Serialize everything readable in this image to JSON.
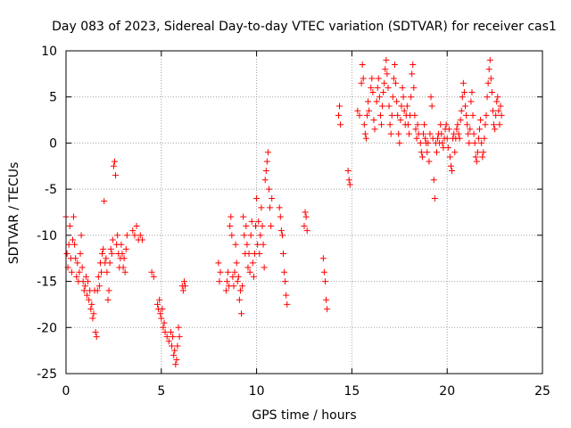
{
  "chart_data": {
    "type": "scatter",
    "title": "Day 083 of 2023, Sidereal Day-to-day VTEC variation (SDTVAR) for receiver cas1",
    "xlabel": "GPS time / hours",
    "ylabel": "SDTVAR / TECUs",
    "xlim": [
      0,
      25
    ],
    "ylim": [
      -25,
      10
    ],
    "xticks": [
      "0",
      "5",
      "10",
      "15",
      "20",
      "25"
    ],
    "yticks": [
      "-25",
      "-20",
      "-15",
      "-10",
      "-5",
      "0",
      "5",
      "10"
    ],
    "grid": true,
    "marker": "+",
    "marker_color": "#ff0000",
    "series": [
      {
        "name": "SDTVAR cas1",
        "points": [
          [
            0.0,
            -8.0
          ],
          [
            0.05,
            -12.0
          ],
          [
            0.1,
            -13.5
          ],
          [
            0.15,
            -11.0
          ],
          [
            0.2,
            -9.0
          ],
          [
            0.25,
            -12.5
          ],
          [
            0.3,
            -14.0
          ],
          [
            0.35,
            -10.5
          ],
          [
            0.4,
            -8.0
          ],
          [
            0.45,
            -11.0
          ],
          [
            0.5,
            -12.5
          ],
          [
            0.55,
            -14.5
          ],
          [
            0.6,
            -13.0
          ],
          [
            0.65,
            -15.0
          ],
          [
            0.7,
            -14.0
          ],
          [
            0.75,
            -12.0
          ],
          [
            0.8,
            -10.0
          ],
          [
            0.85,
            -13.5
          ],
          [
            0.9,
            -15.0
          ],
          [
            0.95,
            -16.0
          ],
          [
            1.0,
            -15.5
          ],
          [
            1.05,
            -14.5
          ],
          [
            1.1,
            -16.5
          ],
          [
            1.15,
            -15.0
          ],
          [
            1.2,
            -17.0
          ],
          [
            1.25,
            -16.0
          ],
          [
            1.3,
            -18.0
          ],
          [
            1.35,
            -17.5
          ],
          [
            1.4,
            -19.0
          ],
          [
            1.45,
            -18.5
          ],
          [
            1.5,
            -16.0
          ],
          [
            1.55,
            -20.5
          ],
          [
            1.6,
            -21.0
          ],
          [
            1.65,
            -16.0
          ],
          [
            1.7,
            -14.5
          ],
          [
            1.75,
            -15.5
          ],
          [
            1.8,
            -13.0
          ],
          [
            1.85,
            -14.0
          ],
          [
            1.9,
            -12.0
          ],
          [
            1.95,
            -11.5
          ],
          [
            2.0,
            -6.3
          ],
          [
            2.05,
            -13.0
          ],
          [
            2.1,
            -12.5
          ],
          [
            2.15,
            -14.0
          ],
          [
            2.2,
            -17.0
          ],
          [
            2.25,
            -16.0
          ],
          [
            2.3,
            -13.0
          ],
          [
            2.35,
            -11.5
          ],
          [
            2.4,
            -12.0
          ],
          [
            2.45,
            -10.5
          ],
          [
            2.5,
            -2.5
          ],
          [
            2.55,
            -2.0
          ],
          [
            2.6,
            -3.5
          ],
          [
            2.65,
            -11.0
          ],
          [
            2.7,
            -10.0
          ],
          [
            2.75,
            -12.0
          ],
          [
            2.8,
            -13.5
          ],
          [
            2.85,
            -12.5
          ],
          [
            2.9,
            -11.0
          ],
          [
            2.95,
            -12.0
          ],
          [
            3.0,
            -13.5
          ],
          [
            3.05,
            -12.5
          ],
          [
            3.1,
            -14.0
          ],
          [
            3.15,
            -11.5
          ],
          [
            3.2,
            -10.0
          ],
          [
            3.5,
            -9.5
          ],
          [
            3.6,
            -10.0
          ],
          [
            3.7,
            -9.0
          ],
          [
            3.8,
            -10.5
          ],
          [
            3.9,
            -10.0
          ],
          [
            4.0,
            -10.5
          ],
          [
            4.5,
            -14.0
          ],
          [
            4.6,
            -14.5
          ],
          [
            4.8,
            -17.5
          ],
          [
            4.85,
            -18.0
          ],
          [
            4.9,
            -17.0
          ],
          [
            4.95,
            -18.5
          ],
          [
            5.0,
            -19.0
          ],
          [
            5.05,
            -18.0
          ],
          [
            5.1,
            -20.0
          ],
          [
            5.15,
            -19.5
          ],
          [
            5.2,
            -20.5
          ],
          [
            5.3,
            -21.0
          ],
          [
            5.4,
            -21.5
          ],
          [
            5.5,
            -20.5
          ],
          [
            5.55,
            -22.0
          ],
          [
            5.6,
            -21.0
          ],
          [
            5.65,
            -23.0
          ],
          [
            5.7,
            -22.5
          ],
          [
            5.75,
            -24.0
          ],
          [
            5.8,
            -23.5
          ],
          [
            5.85,
            -22.0
          ],
          [
            5.9,
            -20.0
          ],
          [
            5.95,
            -21.0
          ],
          [
            6.1,
            -15.5
          ],
          [
            6.15,
            -16.0
          ],
          [
            6.2,
            -15.0
          ],
          [
            6.25,
            -15.5
          ],
          [
            8.0,
            -13.0
          ],
          [
            8.05,
            -15.0
          ],
          [
            8.1,
            -14.0
          ],
          [
            8.4,
            -16.0
          ],
          [
            8.45,
            -15.0
          ],
          [
            8.5,
            -14.0
          ],
          [
            8.55,
            -15.5
          ],
          [
            8.6,
            -9.0
          ],
          [
            8.65,
            -8.0
          ],
          [
            8.7,
            -10.0
          ],
          [
            8.75,
            -14.5
          ],
          [
            8.8,
            -15.5
          ],
          [
            8.85,
            -14.0
          ],
          [
            8.9,
            -11.0
          ],
          [
            8.95,
            -13.0
          ],
          [
            9.0,
            -15.0
          ],
          [
            9.05,
            -14.5
          ],
          [
            9.1,
            -17.0
          ],
          [
            9.15,
            -16.0
          ],
          [
            9.2,
            -18.5
          ],
          [
            9.25,
            -15.5
          ],
          [
            9.3,
            -8.0
          ],
          [
            9.35,
            -10.0
          ],
          [
            9.4,
            -12.0
          ],
          [
            9.45,
            -9.0
          ],
          [
            9.5,
            -11.0
          ],
          [
            9.55,
            -13.5
          ],
          [
            9.6,
            -12.0
          ],
          [
            9.65,
            -14.0
          ],
          [
            9.7,
            -10.0
          ],
          [
            9.75,
            -8.5
          ],
          [
            9.8,
            -13.0
          ],
          [
            9.85,
            -14.5
          ],
          [
            9.9,
            -12.0
          ],
          [
            9.95,
            -9.0
          ],
          [
            10.0,
            -6.0
          ],
          [
            10.05,
            -11.0
          ],
          [
            10.1,
            -8.5
          ],
          [
            10.15,
            -12.0
          ],
          [
            10.2,
            -10.0
          ],
          [
            10.25,
            -7.0
          ],
          [
            10.3,
            -9.0
          ],
          [
            10.35,
            -11.0
          ],
          [
            10.4,
            -13.5
          ],
          [
            10.45,
            -4.0
          ],
          [
            10.5,
            -3.0
          ],
          [
            10.55,
            -2.0
          ],
          [
            10.6,
            -1.0
          ],
          [
            10.65,
            -5.0
          ],
          [
            10.7,
            -7.0
          ],
          [
            10.75,
            -9.0
          ],
          [
            10.8,
            -6.0
          ],
          [
            11.2,
            -7.0
          ],
          [
            11.25,
            -8.0
          ],
          [
            11.3,
            -9.5
          ],
          [
            11.35,
            -10.0
          ],
          [
            11.4,
            -12.0
          ],
          [
            11.45,
            -14.0
          ],
          [
            11.5,
            -15.0
          ],
          [
            11.55,
            -16.5
          ],
          [
            11.6,
            -17.5
          ],
          [
            12.5,
            -9.0
          ],
          [
            12.55,
            -7.5
          ],
          [
            12.6,
            -8.0
          ],
          [
            12.65,
            -9.5
          ],
          [
            13.5,
            -12.5
          ],
          [
            13.55,
            -14.0
          ],
          [
            13.6,
            -15.0
          ],
          [
            13.65,
            -17.0
          ],
          [
            13.7,
            -18.0
          ],
          [
            14.3,
            3.0
          ],
          [
            14.35,
            4.0
          ],
          [
            14.4,
            2.0
          ],
          [
            14.8,
            -3.0
          ],
          [
            14.85,
            -4.0
          ],
          [
            14.9,
            -4.5
          ],
          [
            15.3,
            3.5
          ],
          [
            15.4,
            3.0
          ],
          [
            15.5,
            6.5
          ],
          [
            15.55,
            8.5
          ],
          [
            15.6,
            7.0
          ],
          [
            15.65,
            2.0
          ],
          [
            15.7,
            1.0
          ],
          [
            15.75,
            0.5
          ],
          [
            15.8,
            3.0
          ],
          [
            15.85,
            4.5
          ],
          [
            15.9,
            3.5
          ],
          [
            16.0,
            6.0
          ],
          [
            16.05,
            7.0
          ],
          [
            16.1,
            5.5
          ],
          [
            16.15,
            2.5
          ],
          [
            16.2,
            1.5
          ],
          [
            16.3,
            4.5
          ],
          [
            16.35,
            6.0
          ],
          [
            16.4,
            7.0
          ],
          [
            16.45,
            5.0
          ],
          [
            16.5,
            3.0
          ],
          [
            16.55,
            2.0
          ],
          [
            16.6,
            4.0
          ],
          [
            16.65,
            5.5
          ],
          [
            16.7,
            6.5
          ],
          [
            16.75,
            8.0
          ],
          [
            16.8,
            9.0
          ],
          [
            16.85,
            7.5
          ],
          [
            16.9,
            6.0
          ],
          [
            16.95,
            4.0
          ],
          [
            17.0,
            2.0
          ],
          [
            17.05,
            1.0
          ],
          [
            17.1,
            3.0
          ],
          [
            17.15,
            5.0
          ],
          [
            17.2,
            7.0
          ],
          [
            17.25,
            8.5
          ],
          [
            17.3,
            6.5
          ],
          [
            17.35,
            4.5
          ],
          [
            17.4,
            3.0
          ],
          [
            17.45,
            1.0
          ],
          [
            17.5,
            0.0
          ],
          [
            17.55,
            2.5
          ],
          [
            17.6,
            4.0
          ],
          [
            17.65,
            6.0
          ],
          [
            17.7,
            5.0
          ],
          [
            17.75,
            3.5
          ],
          [
            17.8,
            2.0
          ],
          [
            17.85,
            3.0
          ],
          [
            17.9,
            4.0
          ],
          [
            17.95,
            2.0
          ],
          [
            18.0,
            1.0
          ],
          [
            18.05,
            3.0
          ],
          [
            18.1,
            5.0
          ],
          [
            18.15,
            7.5
          ],
          [
            18.2,
            8.5
          ],
          [
            18.25,
            6.0
          ],
          [
            18.3,
            3.0
          ],
          [
            18.35,
            1.5
          ],
          [
            18.4,
            0.5
          ],
          [
            18.45,
            2.0
          ],
          [
            18.5,
            1.0
          ],
          [
            18.6,
            0.0
          ],
          [
            18.65,
            -1.0
          ],
          [
            18.7,
            -1.5
          ],
          [
            18.75,
            1.0
          ],
          [
            18.8,
            2.0
          ],
          [
            18.85,
            0.5
          ],
          [
            18.9,
            0.0
          ],
          [
            18.95,
            -1.0
          ],
          [
            19.0,
            0.0
          ],
          [
            19.05,
            -2.0
          ],
          [
            19.1,
            1.0
          ],
          [
            19.15,
            5.0
          ],
          [
            19.2,
            4.0
          ],
          [
            19.25,
            0.5
          ],
          [
            19.3,
            -4.0
          ],
          [
            19.35,
            -6.0
          ],
          [
            19.4,
            0.0
          ],
          [
            19.45,
            -1.0
          ],
          [
            19.5,
            0.5
          ],
          [
            19.55,
            1.0
          ],
          [
            19.6,
            0.0
          ],
          [
            19.65,
            2.0
          ],
          [
            19.7,
            1.0
          ],
          [
            19.75,
            0.0
          ],
          [
            19.8,
            -0.5
          ],
          [
            19.85,
            0.5
          ],
          [
            19.9,
            1.5
          ],
          [
            19.95,
            2.0
          ],
          [
            20.0,
            0.5
          ],
          [
            20.05,
            -0.5
          ],
          [
            20.1,
            1.5
          ],
          [
            20.15,
            -1.5
          ],
          [
            20.2,
            -2.5
          ],
          [
            20.25,
            -3.0
          ],
          [
            20.3,
            0.5
          ],
          [
            20.35,
            1.0
          ],
          [
            20.4,
            -1.0
          ],
          [
            20.45,
            0.5
          ],
          [
            20.5,
            1.5
          ],
          [
            20.55,
            2.0
          ],
          [
            20.6,
            1.0
          ],
          [
            20.65,
            0.5
          ],
          [
            20.7,
            2.5
          ],
          [
            20.75,
            3.5
          ],
          [
            20.8,
            5.0
          ],
          [
            20.85,
            6.5
          ],
          [
            20.9,
            5.5
          ],
          [
            20.95,
            4.0
          ],
          [
            21.0,
            3.0
          ],
          [
            21.05,
            2.0
          ],
          [
            21.1,
            1.0
          ],
          [
            21.15,
            0.0
          ],
          [
            21.2,
            1.5
          ],
          [
            21.25,
            4.5
          ],
          [
            21.3,
            5.5
          ],
          [
            21.35,
            3.0
          ],
          [
            21.4,
            1.0
          ],
          [
            21.45,
            0.0
          ],
          [
            21.5,
            -1.5
          ],
          [
            21.55,
            -2.0
          ],
          [
            21.6,
            -1.0
          ],
          [
            21.65,
            0.5
          ],
          [
            21.7,
            1.5
          ],
          [
            21.75,
            2.5
          ],
          [
            21.8,
            0.0
          ],
          [
            21.85,
            -1.5
          ],
          [
            21.9,
            -1.0
          ],
          [
            21.95,
            0.5
          ],
          [
            22.0,
            2.0
          ],
          [
            22.05,
            3.0
          ],
          [
            22.1,
            5.0
          ],
          [
            22.15,
            6.5
          ],
          [
            22.2,
            8.0
          ],
          [
            22.25,
            9.0
          ],
          [
            22.3,
            7.0
          ],
          [
            22.35,
            5.5
          ],
          [
            22.4,
            3.5
          ],
          [
            22.45,
            2.0
          ],
          [
            22.5,
            1.5
          ],
          [
            22.55,
            3.0
          ],
          [
            22.6,
            4.5
          ],
          [
            22.65,
            5.0
          ],
          [
            22.7,
            3.5
          ],
          [
            22.75,
            2.0
          ],
          [
            22.8,
            4.0
          ],
          [
            22.85,
            3.0
          ]
        ]
      }
    ]
  }
}
